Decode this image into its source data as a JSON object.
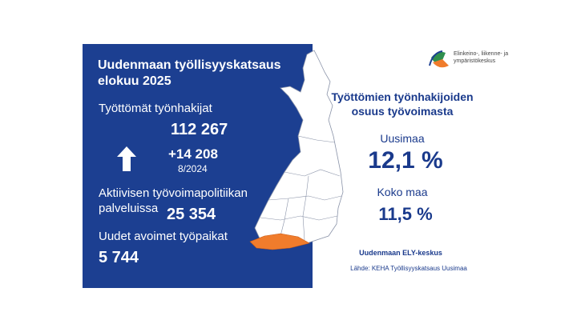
{
  "logo": {
    "lines": [
      "Elinkeino-, liikenne- ja",
      "ympäristökeskus"
    ]
  },
  "panel": {
    "title": [
      "Uudenmaan työllisyyskatsaus",
      "elokuu 2025"
    ],
    "unemployed": {
      "label": "Työttömät työnhakijat",
      "value": "112 267",
      "change": "+14 208",
      "change_ref": "8/2024"
    },
    "active": {
      "label": [
        "Aktiivisen työvoimapolitiikan",
        "palveluissa"
      ],
      "value": "25 354"
    },
    "vacancies": {
      "label": "Uudet avoimet työpaikat",
      "value": "5 744"
    }
  },
  "share": {
    "title": [
      "Työttömien työnhakijoiden",
      "osuus työvoimasta"
    ],
    "region": {
      "label": "Uusimaa",
      "value": "12,1 %"
    },
    "country": {
      "label": "Koko maa",
      "value": "11,5 %"
    }
  },
  "footer": {
    "org": "Uudenmaan ELY-keskus",
    "source": "Lähde: KEHA Työllisyyskatsaus Uusimaa"
  }
}
